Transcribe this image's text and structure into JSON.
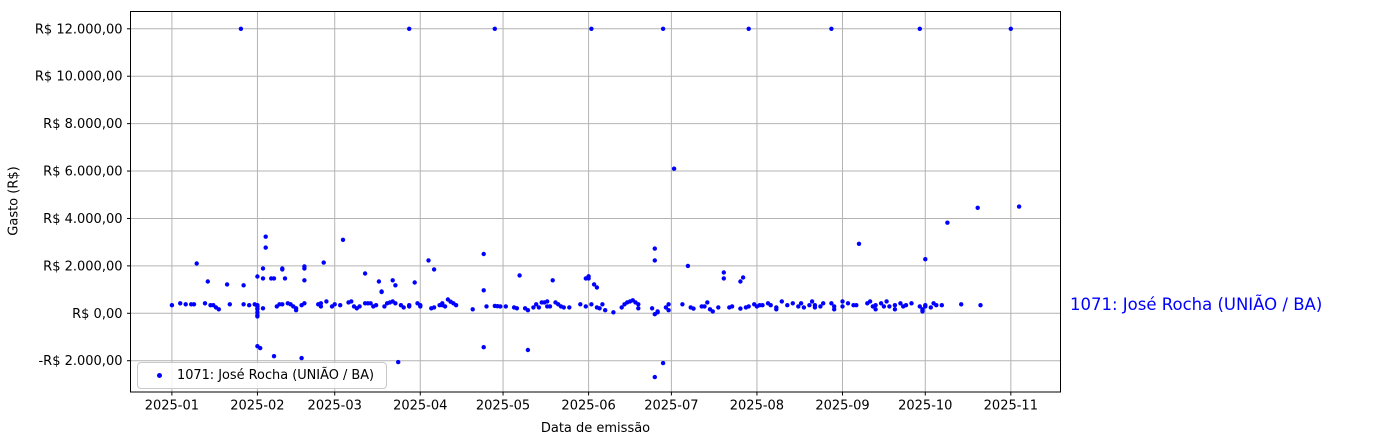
{
  "annotation": {
    "text": "1071: José Rocha (UNIÃO / BA)",
    "color": "#0000ff"
  },
  "chart_data": {
    "type": "scatter",
    "title": "",
    "xlabel": "Data de emissão",
    "ylabel": "Gasto (R$)",
    "grid": true,
    "legend": {
      "label": "1071: José Rocha (UNIÃO / BA)",
      "position": "lower left"
    },
    "marker_color": "#0000ff",
    "grid_color": "#b4b4b4",
    "spine_color": "#000000",
    "ylim": [
      -3320,
      12730
    ],
    "xlim": [
      "2024-12-17",
      "2025-11-19"
    ],
    "x_ticks": [
      {
        "date": "2025-01-01",
        "label": "2025-01"
      },
      {
        "date": "2025-02-01",
        "label": "2025-02"
      },
      {
        "date": "2025-03-01",
        "label": "2025-03"
      },
      {
        "date": "2025-04-01",
        "label": "2025-04"
      },
      {
        "date": "2025-05-01",
        "label": "2025-05"
      },
      {
        "date": "2025-06-01",
        "label": "2025-06"
      },
      {
        "date": "2025-07-01",
        "label": "2025-07"
      },
      {
        "date": "2025-08-01",
        "label": "2025-08"
      },
      {
        "date": "2025-09-01",
        "label": "2025-09"
      },
      {
        "date": "2025-10-01",
        "label": "2025-10"
      },
      {
        "date": "2025-11-01",
        "label": "2025-11"
      }
    ],
    "y_ticks": [
      {
        "value": 12000,
        "label": "R$ 12.000,00"
      },
      {
        "value": 10000,
        "label": "R$ 10.000,00"
      },
      {
        "value": 8000,
        "label": "R$ 8.000,00"
      },
      {
        "value": 6000,
        "label": "R$ 6.000,00"
      },
      {
        "value": 4000,
        "label": "R$ 4.000,00"
      },
      {
        "value": 2000,
        "label": "R$ 2.000,00"
      },
      {
        "value": 0,
        "label": "R$ 0,00"
      },
      {
        "value": -2000,
        "label": "-R$ 2.000,00"
      }
    ],
    "series": [
      {
        "name": "1071: José Rocha (UNIÃO / BA)",
        "points": [
          [
            "2025-01-01",
            340
          ],
          [
            "2025-01-04",
            420
          ],
          [
            "2025-01-06",
            380
          ],
          [
            "2025-01-08",
            380
          ],
          [
            "2025-01-09",
            380
          ],
          [
            "2025-01-10",
            2100
          ],
          [
            "2025-01-13",
            420
          ],
          [
            "2025-01-14",
            1340
          ],
          [
            "2025-01-15",
            340
          ],
          [
            "2025-01-16",
            340
          ],
          [
            "2025-01-17",
            250
          ],
          [
            "2025-01-18",
            170
          ],
          [
            "2025-01-21",
            1220
          ],
          [
            "2025-01-22",
            380
          ],
          [
            "2025-01-26",
            12000
          ],
          [
            "2025-01-27",
            1180
          ],
          [
            "2025-01-27",
            380
          ],
          [
            "2025-01-29",
            340
          ],
          [
            "2025-01-31",
            380
          ],
          [
            "2025-02-01",
            1550
          ],
          [
            "2025-02-01",
            340
          ],
          [
            "2025-02-01",
            290
          ],
          [
            "2025-02-01",
            210
          ],
          [
            "2025-02-01",
            170
          ],
          [
            "2025-02-01",
            40
          ],
          [
            "2025-02-01",
            -80
          ],
          [
            "2025-02-01",
            -130
          ],
          [
            "2025-02-01",
            -1390
          ],
          [
            "2025-02-02",
            -1470
          ],
          [
            "2025-02-03",
            1890
          ],
          [
            "2025-02-03",
            1470
          ],
          [
            "2025-02-03",
            210
          ],
          [
            "2025-02-04",
            3230
          ],
          [
            "2025-02-04",
            2770
          ],
          [
            "2025-02-06",
            1470
          ],
          [
            "2025-02-07",
            1470
          ],
          [
            "2025-02-07",
            -1810
          ],
          [
            "2025-02-08",
            290
          ],
          [
            "2025-02-09",
            380
          ],
          [
            "2025-02-10",
            1890
          ],
          [
            "2025-02-10",
            1850
          ],
          [
            "2025-02-10",
            380
          ],
          [
            "2025-02-11",
            1470
          ],
          [
            "2025-02-12",
            420
          ],
          [
            "2025-02-13",
            380
          ],
          [
            "2025-02-14",
            290
          ],
          [
            "2025-02-15",
            210
          ],
          [
            "2025-02-15",
            130
          ],
          [
            "2025-02-17",
            340
          ],
          [
            "2025-02-17",
            -1890
          ],
          [
            "2025-02-18",
            1980
          ],
          [
            "2025-02-18",
            1890
          ],
          [
            "2025-02-18",
            1390
          ],
          [
            "2025-02-18",
            420
          ],
          [
            "2025-02-23",
            380
          ],
          [
            "2025-02-24",
            420
          ],
          [
            "2025-02-24",
            290
          ],
          [
            "2025-02-25",
            2140
          ],
          [
            "2025-02-26",
            500
          ],
          [
            "2025-02-28",
            290
          ],
          [
            "2025-03-01",
            380
          ],
          [
            "2025-03-03",
            340
          ],
          [
            "2025-03-04",
            3100
          ],
          [
            "2025-03-06",
            460
          ],
          [
            "2025-03-07",
            500
          ],
          [
            "2025-03-08",
            290
          ],
          [
            "2025-03-09",
            210
          ],
          [
            "2025-03-10",
            290
          ],
          [
            "2025-03-12",
            1680
          ],
          [
            "2025-03-12",
            420
          ],
          [
            "2025-03-13",
            420
          ],
          [
            "2025-03-14",
            420
          ],
          [
            "2025-03-15",
            290
          ],
          [
            "2025-03-16",
            340
          ],
          [
            "2025-03-17",
            1340
          ],
          [
            "2025-03-18",
            920
          ],
          [
            "2025-03-18",
            900
          ],
          [
            "2025-03-19",
            290
          ],
          [
            "2025-03-20",
            420
          ],
          [
            "2025-03-21",
            460
          ],
          [
            "2025-03-22",
            1390
          ],
          [
            "2025-03-22",
            500
          ],
          [
            "2025-03-23",
            1180
          ],
          [
            "2025-03-23",
            420
          ],
          [
            "2025-03-24",
            -2060
          ],
          [
            "2025-03-25",
            340
          ],
          [
            "2025-03-26",
            250
          ],
          [
            "2025-03-28",
            12000
          ],
          [
            "2025-03-28",
            340
          ],
          [
            "2025-03-28",
            290
          ],
          [
            "2025-03-30",
            1300
          ],
          [
            "2025-03-31",
            420
          ],
          [
            "2025-04-01",
            340
          ],
          [
            "2025-04-01",
            290
          ],
          [
            "2025-04-04",
            2230
          ],
          [
            "2025-04-05",
            210
          ],
          [
            "2025-04-06",
            1850
          ],
          [
            "2025-04-06",
            250
          ],
          [
            "2025-04-08",
            340
          ],
          [
            "2025-04-09",
            420
          ],
          [
            "2025-04-09",
            340
          ],
          [
            "2025-04-10",
            290
          ],
          [
            "2025-04-11",
            580
          ],
          [
            "2025-04-12",
            490
          ],
          [
            "2025-04-13",
            420
          ],
          [
            "2025-04-14",
            340
          ],
          [
            "2025-04-20",
            170
          ],
          [
            "2025-04-24",
            2500
          ],
          [
            "2025-04-24",
            970
          ],
          [
            "2025-04-24",
            -1430
          ],
          [
            "2025-04-25",
            290
          ],
          [
            "2025-04-28",
            12000
          ],
          [
            "2025-04-28",
            310
          ],
          [
            "2025-04-29",
            300
          ],
          [
            "2025-04-30",
            290
          ],
          [
            "2025-05-02",
            290
          ],
          [
            "2025-05-05",
            250
          ],
          [
            "2025-05-06",
            210
          ],
          [
            "2025-05-07",
            1600
          ],
          [
            "2025-05-09",
            210
          ],
          [
            "2025-05-10",
            130
          ],
          [
            "2025-05-10",
            -1550
          ],
          [
            "2025-05-12",
            250
          ],
          [
            "2025-05-13",
            380
          ],
          [
            "2025-05-14",
            250
          ],
          [
            "2025-05-15",
            460
          ],
          [
            "2025-05-16",
            460
          ],
          [
            "2025-05-17",
            500
          ],
          [
            "2025-05-17",
            290
          ],
          [
            "2025-05-18",
            290
          ],
          [
            "2025-05-19",
            1390
          ],
          [
            "2025-05-20",
            460
          ],
          [
            "2025-05-21",
            380
          ],
          [
            "2025-05-22",
            290
          ],
          [
            "2025-05-23",
            250
          ],
          [
            "2025-05-25",
            250
          ],
          [
            "2025-05-29",
            380
          ],
          [
            "2025-05-31",
            1470
          ],
          [
            "2025-05-31",
            290
          ],
          [
            "2025-06-01",
            1560
          ],
          [
            "2025-06-01",
            1470
          ],
          [
            "2025-06-02",
            12000
          ],
          [
            "2025-06-02",
            380
          ],
          [
            "2025-06-03",
            1220
          ],
          [
            "2025-06-04",
            1090
          ],
          [
            "2025-06-04",
            250
          ],
          [
            "2025-06-05",
            210
          ],
          [
            "2025-06-06",
            380
          ],
          [
            "2025-06-07",
            130
          ],
          [
            "2025-06-10",
            40
          ],
          [
            "2025-06-13",
            250
          ],
          [
            "2025-06-14",
            380
          ],
          [
            "2025-06-15",
            460
          ],
          [
            "2025-06-16",
            500
          ],
          [
            "2025-06-17",
            550
          ],
          [
            "2025-06-18",
            460
          ],
          [
            "2025-06-19",
            380
          ],
          [
            "2025-06-19",
            210
          ],
          [
            "2025-06-24",
            210
          ],
          [
            "2025-06-25",
            2730
          ],
          [
            "2025-06-25",
            2230
          ],
          [
            "2025-06-25",
            -40
          ],
          [
            "2025-06-25",
            -2690
          ],
          [
            "2025-06-26",
            40
          ],
          [
            "2025-06-26",
            80
          ],
          [
            "2025-06-28",
            12000
          ],
          [
            "2025-06-28",
            -2100
          ],
          [
            "2025-06-29",
            250
          ],
          [
            "2025-06-30",
            380
          ],
          [
            "2025-06-30",
            130
          ],
          [
            "2025-07-02",
            6100
          ],
          [
            "2025-07-05",
            380
          ],
          [
            "2025-07-07",
            2000
          ],
          [
            "2025-07-08",
            250
          ],
          [
            "2025-07-09",
            200
          ],
          [
            "2025-07-12",
            290
          ],
          [
            "2025-07-13",
            290
          ],
          [
            "2025-07-14",
            460
          ],
          [
            "2025-07-15",
            170
          ],
          [
            "2025-07-16",
            80
          ],
          [
            "2025-07-18",
            250
          ],
          [
            "2025-07-20",
            1720
          ],
          [
            "2025-07-20",
            1470
          ],
          [
            "2025-07-22",
            250
          ],
          [
            "2025-07-23",
            290
          ],
          [
            "2025-07-26",
            1340
          ],
          [
            "2025-07-26",
            200
          ],
          [
            "2025-07-27",
            1510
          ],
          [
            "2025-07-28",
            250
          ],
          [
            "2025-07-29",
            12000
          ],
          [
            "2025-07-29",
            290
          ],
          [
            "2025-07-31",
            380
          ],
          [
            "2025-08-01",
            290
          ],
          [
            "2025-08-02",
            340
          ],
          [
            "2025-08-03",
            340
          ],
          [
            "2025-08-05",
            420
          ],
          [
            "2025-08-06",
            340
          ],
          [
            "2025-08-08",
            250
          ],
          [
            "2025-08-08",
            170
          ],
          [
            "2025-08-10",
            500
          ],
          [
            "2025-08-12",
            340
          ],
          [
            "2025-08-14",
            420
          ],
          [
            "2025-08-16",
            290
          ],
          [
            "2025-08-17",
            420
          ],
          [
            "2025-08-18",
            250
          ],
          [
            "2025-08-20",
            340
          ],
          [
            "2025-08-21",
            500
          ],
          [
            "2025-08-22",
            340
          ],
          [
            "2025-08-22",
            250
          ],
          [
            "2025-08-24",
            290
          ],
          [
            "2025-08-25",
            420
          ],
          [
            "2025-08-28",
            12000
          ],
          [
            "2025-08-28",
            420
          ],
          [
            "2025-08-29",
            290
          ],
          [
            "2025-08-29",
            170
          ],
          [
            "2025-09-01",
            500
          ],
          [
            "2025-09-01",
            290
          ],
          [
            "2025-09-03",
            420
          ],
          [
            "2025-09-05",
            340
          ],
          [
            "2025-09-06",
            340
          ],
          [
            "2025-09-07",
            2930
          ],
          [
            "2025-09-10",
            420
          ],
          [
            "2025-09-11",
            500
          ],
          [
            "2025-09-12",
            290
          ],
          [
            "2025-09-13",
            340
          ],
          [
            "2025-09-13",
            170
          ],
          [
            "2025-09-15",
            420
          ],
          [
            "2025-09-16",
            290
          ],
          [
            "2025-09-17",
            500
          ],
          [
            "2025-09-18",
            290
          ],
          [
            "2025-09-20",
            340
          ],
          [
            "2025-09-20",
            170
          ],
          [
            "2025-09-22",
            420
          ],
          [
            "2025-09-23",
            290
          ],
          [
            "2025-09-24",
            340
          ],
          [
            "2025-09-26",
            420
          ],
          [
            "2025-09-29",
            12000
          ],
          [
            "2025-09-29",
            290
          ],
          [
            "2025-09-30",
            170
          ],
          [
            "2025-09-30",
            130
          ],
          [
            "2025-09-30",
            80
          ],
          [
            "2025-10-01",
            2280
          ],
          [
            "2025-10-01",
            340
          ],
          [
            "2025-10-01",
            290
          ],
          [
            "2025-10-03",
            250
          ],
          [
            "2025-10-04",
            420
          ],
          [
            "2025-10-05",
            340
          ],
          [
            "2025-10-07",
            340
          ],
          [
            "2025-10-09",
            3820
          ],
          [
            "2025-10-14",
            380
          ],
          [
            "2025-10-20",
            4450
          ],
          [
            "2025-10-21",
            340
          ],
          [
            "2025-11-01",
            12000
          ],
          [
            "2025-11-04",
            4500
          ]
        ]
      }
    ]
  }
}
